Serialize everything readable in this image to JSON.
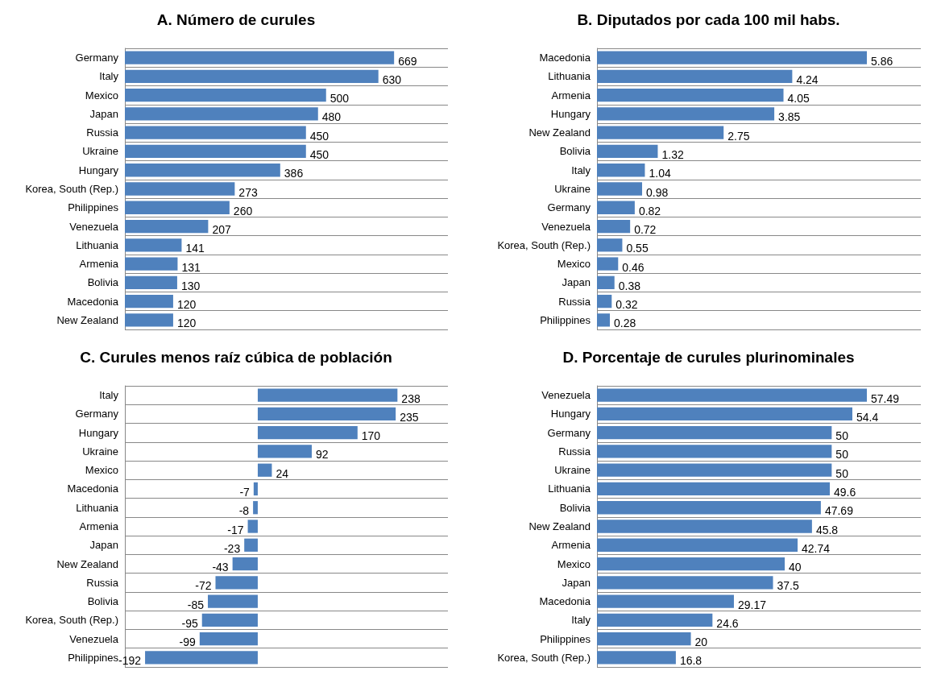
{
  "chart_data": [
    {
      "type": "bar",
      "orientation": "horizontal",
      "title": "A. Número de curules",
      "categories": [
        "Germany",
        "Italy",
        "Mexico",
        "Japan",
        "Russia",
        "Ukraine",
        "Hungary",
        "Korea, South (Rep.)",
        "Philippines",
        "Venezuela",
        "Lithuania",
        "Armenia",
        "Bolivia",
        "Macedonia",
        "New Zealand"
      ],
      "values": [
        669,
        630,
        500,
        480,
        450,
        450,
        386,
        273,
        260,
        207,
        141,
        131,
        130,
        120,
        120
      ],
      "color": "#4f81bd",
      "data_labels": true,
      "grid": "y"
    },
    {
      "type": "bar",
      "orientation": "horizontal",
      "title": "B. Diputados por cada 100 mil habs.",
      "categories": [
        "Macedonia",
        "Lithuania",
        "Armenia",
        "Hungary",
        "New Zealand",
        "Bolivia",
        "Italy",
        "Ukraine",
        "Germany",
        "Venezuela",
        "Korea, South (Rep.)",
        "Mexico",
        "Japan",
        "Russia",
        "Philippines"
      ],
      "values": [
        5.86,
        4.24,
        4.05,
        3.85,
        2.75,
        1.32,
        1.04,
        0.98,
        0.82,
        0.72,
        0.55,
        0.46,
        0.38,
        0.32,
        0.28
      ],
      "color": "#4f81bd",
      "data_labels": true,
      "grid": "y"
    },
    {
      "type": "bar",
      "orientation": "horizontal",
      "title": "C. Curules menos raíz cúbica de población",
      "categories": [
        "Italy",
        "Germany",
        "Hungary",
        "Ukraine",
        "Mexico",
        "Macedonia",
        "Lithuania",
        "Armenia",
        "Japan",
        "New Zealand",
        "Russia",
        "Bolivia",
        "Korea, South (Rep.)",
        "Venezuela",
        "Philippines"
      ],
      "values": [
        238,
        235,
        170,
        92,
        24,
        -7,
        -8,
        -17,
        -23,
        -43,
        -72,
        -85,
        -95,
        -99,
        -192
      ],
      "color": "#4f81bd",
      "data_labels": true,
      "grid": "y"
    },
    {
      "type": "bar",
      "orientation": "horizontal",
      "title": "D. Porcentaje de curules plurinominales",
      "categories": [
        "Venezuela",
        "Hungary",
        "Germany",
        "Russia",
        "Ukraine",
        "Lithuania",
        "Bolivia",
        "New Zealand",
        "Armenia",
        "Mexico",
        "Japan",
        "Macedonia",
        "Italy",
        "Philippines",
        "Korea, South (Rep.)"
      ],
      "values": [
        57.49,
        54.4,
        50,
        50,
        50,
        49.6,
        47.69,
        45.8,
        42.74,
        40,
        37.5,
        29.17,
        24.6,
        20,
        16.8
      ],
      "color": "#4f81bd",
      "data_labels": true,
      "grid": "y"
    }
  ]
}
